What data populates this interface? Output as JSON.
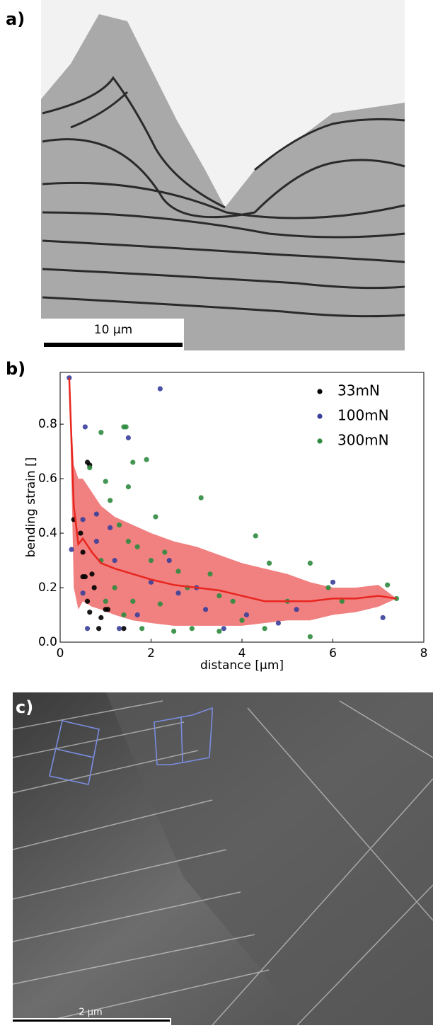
{
  "panels": {
    "a": {
      "label": "a)",
      "scale_bar": "10 µm"
    },
    "c": {
      "label": "c)",
      "scale_bar": "2 µm"
    }
  },
  "chart_data": {
    "type": "scatter",
    "label": "b)",
    "x_label": "distance [μm]",
    "y_label": "bending strain []",
    "xlim": [
      0,
      8
    ],
    "ylim": [
      0,
      0.99
    ],
    "xticks": [
      0,
      2,
      4,
      6,
      8
    ],
    "yticks": [
      {
        "value": 0,
        "label": "0.0"
      },
      {
        "value": 0.2,
        "label": "0.2"
      },
      {
        "value": 0.4,
        "label": "0.4"
      },
      {
        "value": 0.6,
        "label": "0.6"
      },
      {
        "value": 0.8,
        "label": "0.8"
      }
    ],
    "legend": "upper right",
    "series": [
      {
        "name": "33mN",
        "color": "#000000",
        "x": [
          0.3,
          0.45,
          0.55,
          0.6,
          0.65,
          0.5,
          0.7,
          0.75,
          0.6,
          0.65,
          0.9,
          1.0,
          1.05,
          0.85,
          1.4,
          0.5
        ],
        "values": [
          0.45,
          0.4,
          0.24,
          0.66,
          0.65,
          0.24,
          0.25,
          0.2,
          0.15,
          0.11,
          0.09,
          0.12,
          0.12,
          0.05,
          0.05,
          0.33
        ]
      },
      {
        "name": "100mN",
        "color": "#3a3f9a",
        "x": [
          0.2,
          0.25,
          0.55,
          0.5,
          0.8,
          0.8,
          1.1,
          1.5,
          2.2,
          1.7,
          2.0,
          2.6,
          3.0,
          3.2,
          4.1,
          4.8,
          5.2,
          6.0,
          7.1,
          1.3,
          0.6,
          0.5,
          3.6,
          2.4,
          1.2
        ],
        "values": [
          0.97,
          0.34,
          0.79,
          0.18,
          0.47,
          0.37,
          0.42,
          0.75,
          0.93,
          0.1,
          0.22,
          0.18,
          0.2,
          0.12,
          0.1,
          0.07,
          0.12,
          0.22,
          0.09,
          0.05,
          0.05,
          0.45,
          0.05,
          0.3,
          0.3
        ]
      },
      {
        "name": "300mN",
        "color": "#2e8b3e",
        "x": [
          0.65,
          1.0,
          0.9,
          1.4,
          1.45,
          1.6,
          1.9,
          1.5,
          2.1,
          1.1,
          1.3,
          1.5,
          1.7,
          2.0,
          2.3,
          2.6,
          2.8,
          3.1,
          3.3,
          3.5,
          3.8,
          4.3,
          4.6,
          5.0,
          5.5,
          5.9,
          6.2,
          7.2,
          7.4,
          1.2,
          1.4,
          1.6,
          1.8,
          2.5,
          2.9,
          3.5,
          4.0,
          4.5,
          5.5,
          1.0,
          0.9,
          2.2
        ],
        "values": [
          0.64,
          0.59,
          0.77,
          0.79,
          0.79,
          0.66,
          0.67,
          0.57,
          0.46,
          0.52,
          0.43,
          0.37,
          0.35,
          0.3,
          0.33,
          0.26,
          0.2,
          0.53,
          0.25,
          0.17,
          0.15,
          0.39,
          0.29,
          0.15,
          0.29,
          0.2,
          0.15,
          0.21,
          0.16,
          0.2,
          0.1,
          0.15,
          0.05,
          0.04,
          0.05,
          0.04,
          0.08,
          0.05,
          0.02,
          0.15,
          0.3,
          0.14
        ]
      }
    ],
    "trend": {
      "color": "#e8261e",
      "band_color": "#ee6a6a",
      "x": [
        0.2,
        0.3,
        0.4,
        0.5,
        0.7,
        0.9,
        1.2,
        1.6,
        2,
        2.5,
        3,
        3.5,
        4,
        4.5,
        5,
        5.5,
        6,
        6.5,
        7,
        7.4
      ],
      "values": [
        0.97,
        0.5,
        0.36,
        0.38,
        0.33,
        0.29,
        0.27,
        0.25,
        0.23,
        0.21,
        0.2,
        0.19,
        0.17,
        0.15,
        0.15,
        0.15,
        0.16,
        0.16,
        0.17,
        0.16
      ],
      "lower": [
        0.97,
        0.2,
        0.12,
        0.15,
        0.13,
        0.12,
        0.1,
        0.08,
        0.07,
        0.06,
        0.06,
        0.06,
        0.06,
        0.07,
        0.08,
        0.08,
        0.1,
        0.11,
        0.13,
        0.16
      ],
      "upper": [
        0.97,
        0.65,
        0.6,
        0.6,
        0.55,
        0.5,
        0.46,
        0.43,
        0.4,
        0.37,
        0.35,
        0.32,
        0.29,
        0.27,
        0.25,
        0.22,
        0.2,
        0.2,
        0.21,
        0.16
      ]
    }
  }
}
